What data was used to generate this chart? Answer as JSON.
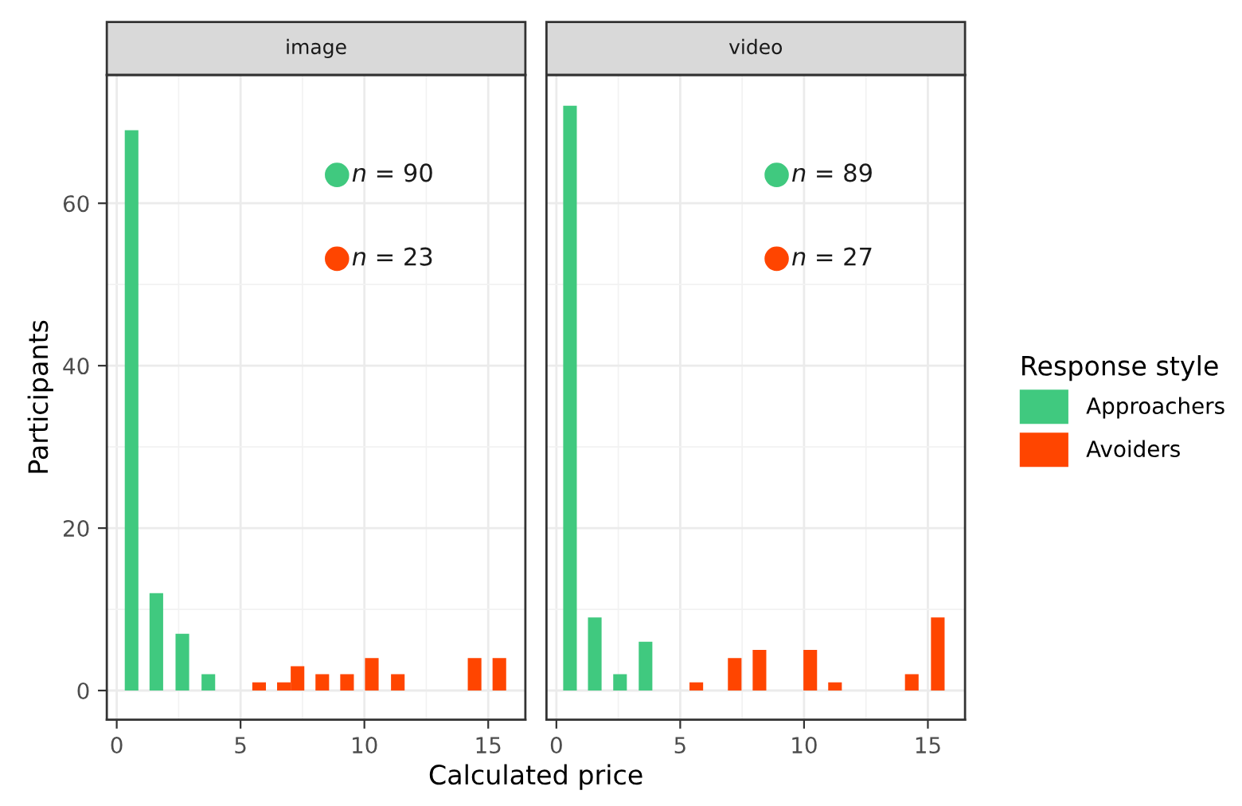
{
  "chart_data": [
    {
      "type": "bar",
      "title": "image",
      "xlabel": "Calculated price",
      "ylabel": "Participants",
      "xlim": [
        -0.4,
        16.5
      ],
      "xticks": [
        0,
        5,
        10,
        15
      ],
      "ylim": [
        -3.6,
        75.8
      ],
      "yticks": [
        0,
        20,
        40,
        60
      ],
      "grid": true,
      "legend": "right",
      "legend_title": "Response style",
      "series": [
        {
          "name": "Approachers",
          "color": "#40c97f",
          "x": [
            0.6,
            1.6,
            2.65,
            3.7
          ],
          "values": [
            69,
            12,
            7,
            2
          ]
        },
        {
          "name": "Avoiders",
          "color": "#ff4500",
          "x": [
            5.75,
            6.75,
            7.3,
            8.3,
            9.3,
            10.3,
            11.35,
            14.45,
            15.45
          ],
          "values": [
            1,
            1,
            3,
            2,
            2,
            4,
            2,
            4,
            4
          ]
        }
      ],
      "annotations": [
        "n = 90",
        "n = 23"
      ]
    },
    {
      "type": "bar",
      "title": "video",
      "xlim": [
        -0.4,
        16.5
      ],
      "xticks": [
        0,
        5,
        10,
        15
      ],
      "ylim": [
        -3.6,
        75.8
      ],
      "yticks": [
        0,
        20,
        40,
        60
      ],
      "grid": true,
      "tick_labels": "x",
      "series": [
        {
          "color": "#40c97f",
          "x": [
            0.55,
            1.55,
            2.57,
            3.6
          ],
          "values": [
            72,
            9,
            2,
            6
          ]
        },
        {
          "color": "#ff4500",
          "x": [
            5.65,
            7.2,
            8.2,
            10.25,
            11.25,
            14.35,
            15.4
          ],
          "values": [
            1,
            4,
            5,
            5,
            1,
            2,
            9
          ]
        }
      ],
      "annotations": [
        "n = 89",
        "n = 27"
      ]
    }
  ]
}
